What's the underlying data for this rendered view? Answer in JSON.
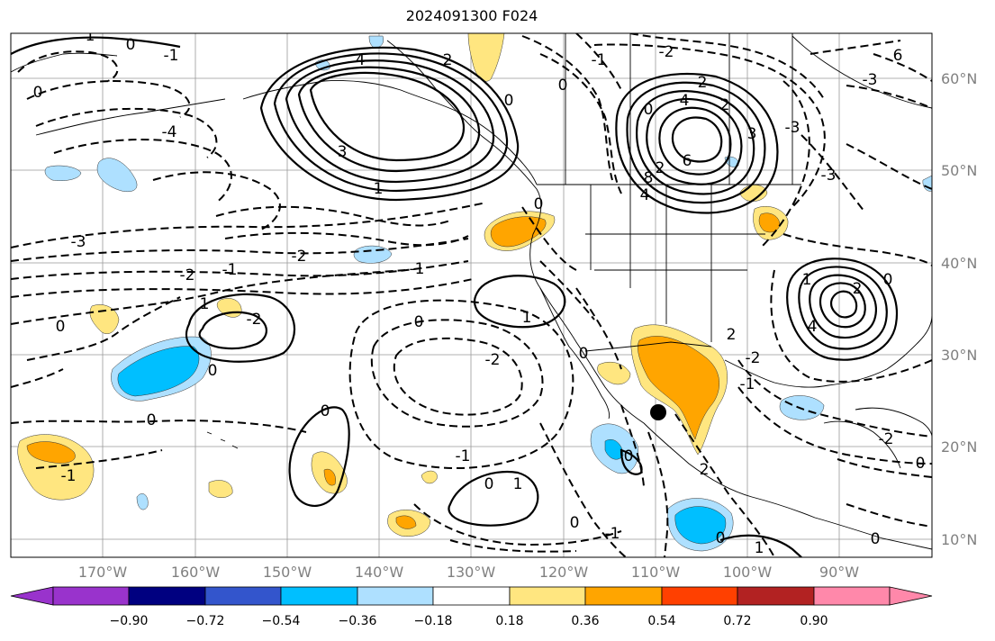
{
  "title": "2024091300 F024",
  "lat_labels": [
    "60°N",
    "50°N",
    "40°N",
    "30°N",
    "20°N",
    "10°N"
  ],
  "lon_labels": [
    "170°W",
    "160°W",
    "150°W",
    "140°W",
    "130°W",
    "120°W",
    "110°W",
    "100°W",
    "90°W"
  ],
  "colorbar": {
    "ticks": [
      "−0.90",
      "−0.72",
      "−0.54",
      "−0.36",
      "−0.18",
      "0.18",
      "0.36",
      "0.54",
      "0.72",
      "0.90"
    ],
    "colors": [
      "#9933cc",
      "#000080",
      "#3355cc",
      "#00bfff",
      "#aee0ff",
      "#ffffff",
      "#ffe680",
      "#ffa500",
      "#ff4000",
      "#b22222",
      "#ff88aa"
    ]
  },
  "contour_labels": [
    "0",
    "-1",
    "1",
    "4",
    "2",
    "0",
    "-2",
    "0",
    "-1",
    "2",
    "2",
    "0",
    "4",
    "6",
    "3",
    "-3",
    "6",
    "-3",
    "-3",
    "-2",
    "-4",
    "0",
    "-1",
    "3",
    "1",
    "-3",
    "-2",
    "-1",
    "0",
    "1",
    "-2",
    "0",
    "1",
    "2",
    "0",
    "0",
    "0",
    "-1",
    "0",
    "1",
    "0",
    "-1",
    "-2",
    "0",
    "1",
    "0",
    "0",
    "0",
    "-1",
    "2",
    "-2",
    "0",
    "1",
    "4",
    "2",
    "-1",
    "0",
    "-2",
    "8",
    "4",
    "2",
    "0"
  ],
  "marker": "current-location-dot"
}
